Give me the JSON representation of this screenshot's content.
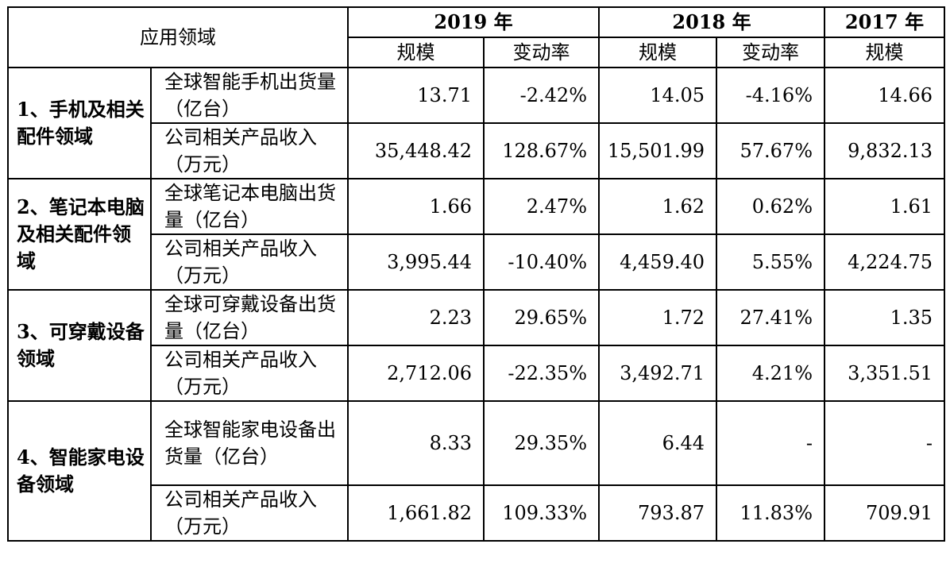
{
  "table": {
    "header": {
      "field": "应用领域",
      "years": [
        "2019 年",
        "2018 年",
        "2017 年"
      ],
      "scale": "规模",
      "change": "变动率"
    },
    "groups": [
      {
        "name": "1、手机及相关配件领域",
        "rows": [
          {
            "metric": "全球智能手机出货量（亿台）",
            "v2019": "13.71",
            "c2019": "-2.42%",
            "v2018": "14.05",
            "c2018": "-4.16%",
            "v2017": "14.66"
          },
          {
            "metric": "公司相关产品收入（万元）",
            "v2019": "35,448.42",
            "c2019": "128.67%",
            "v2018": "15,501.99",
            "c2018": "57.67%",
            "v2017": "9,832.13"
          }
        ]
      },
      {
        "name": "2、笔记本电脑及相关配件领域",
        "rows": [
          {
            "metric": "全球笔记本电脑出货量（亿台）",
            "v2019": "1.66",
            "c2019": "2.47%",
            "v2018": "1.62",
            "c2018": "0.62%",
            "v2017": "1.61"
          },
          {
            "metric": "公司相关产品收入（万元）",
            "v2019": "3,995.44",
            "c2019": "-10.40%",
            "v2018": "4,459.40",
            "c2018": "5.55%",
            "v2017": "4,224.75"
          }
        ]
      },
      {
        "name": "3、可穿戴设备领域",
        "rows": [
          {
            "metric": "全球可穿戴设备出货量（亿台）",
            "v2019": "2.23",
            "c2019": "29.65%",
            "v2018": "1.72",
            "c2018": "27.41%",
            "v2017": "1.35"
          },
          {
            "metric": "公司相关产品收入（万元）",
            "v2019": "2,712.06",
            "c2019": "-22.35%",
            "v2018": "3,492.71",
            "c2018": "4.21%",
            "v2017": "3,351.51"
          }
        ]
      },
      {
        "name": "4、智能家电设备领域",
        "rows": [
          {
            "metric": "全球智能家电设备出货量（亿台）",
            "v2019": "8.33",
            "c2019": "29.35%",
            "v2018": "6.44",
            "c2018": "-",
            "v2017": "-"
          },
          {
            "metric": "公司相关产品收入（万元）",
            "v2019": "1,661.82",
            "c2019": "109.33%",
            "v2018": "793.87",
            "c2018": "11.83%",
            "v2017": "709.91"
          }
        ]
      }
    ]
  }
}
